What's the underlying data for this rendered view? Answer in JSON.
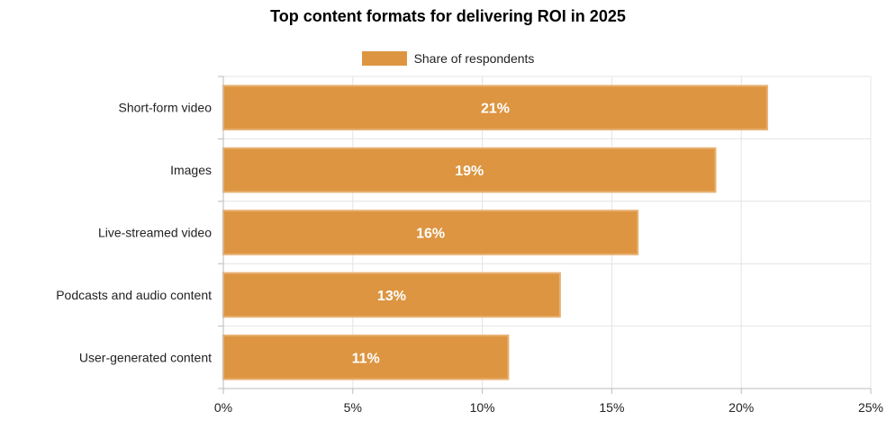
{
  "chart_data": {
    "type": "bar",
    "orientation": "horizontal",
    "title": "Top content formats for delivering ROI in 2025",
    "categories": [
      "Short-form video",
      "Images",
      "Live-streamed video",
      "Podcasts and audio content",
      "User-generated content"
    ],
    "series": [
      {
        "name": "Share of respondents",
        "values": [
          21,
          19,
          16,
          13,
          11
        ],
        "data_labels": [
          "21%",
          "19%",
          "16%",
          "13%",
          "11%"
        ]
      }
    ],
    "xlim": [
      0,
      25
    ],
    "x_ticks": [
      0,
      5,
      10,
      15,
      20,
      25
    ],
    "x_tick_labels": [
      "0%",
      "5%",
      "10%",
      "15%",
      "20%",
      "25%"
    ],
    "grid": true,
    "legend_position": "top-center",
    "colors": {
      "bar_fill": "#dd9541",
      "bar_stroke": "#e8b071",
      "bar_label": "#ffffff",
      "grid": "#e4e4e4",
      "axis": "#bbbbbb",
      "text": "#222222"
    }
  }
}
